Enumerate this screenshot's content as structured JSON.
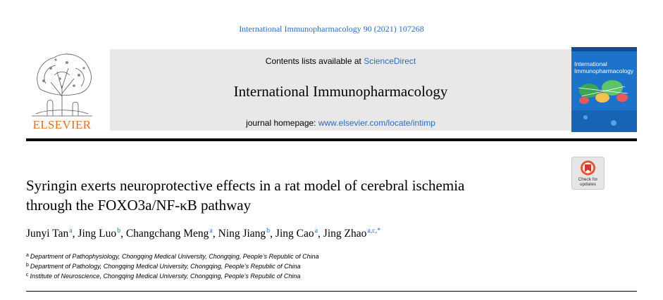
{
  "citation": "International Immunopharmacology 90 (2021) 107268",
  "header": {
    "publisher_logo": "ELSEVIER",
    "contents_prefix": "Contents lists available at ",
    "contents_link": "ScienceDirect",
    "journal_title": "International Immunopharmacology",
    "homepage_prefix": "journal homepage: ",
    "homepage_link": "www.elsevier.com/locate/intimp"
  },
  "cover": {
    "line1": "International",
    "line2": "Immunopharmacology",
    "accent_color": "#1d73c9"
  },
  "check_updates": {
    "line1": "Check for",
    "line2": "updates"
  },
  "article": {
    "title_line1": "Syringin exerts neuroprotective effects in a rat model of cerebral ischemia",
    "title_line2": "through the FOXO3a/NF-κB pathway"
  },
  "authors": [
    {
      "name": "Junyi Tan",
      "sup": "a",
      "sep": ", "
    },
    {
      "name": "Jing Luo",
      "sup": "b",
      "sep": ", "
    },
    {
      "name": "Changchang Meng",
      "sup": "a",
      "sep": ", "
    },
    {
      "name": "Ning Jiang",
      "sup": "b",
      "sep": ", "
    },
    {
      "name": "Jing Cao",
      "sup": "a",
      "sep": ", "
    },
    {
      "name": "Jing Zhao",
      "sup": "a,c,*",
      "sep": ""
    }
  ],
  "affiliations": [
    {
      "mark": "a",
      "text": "Department of Pathophysiology, Chongqing Medical University, Chongqing, People’s Republic of China"
    },
    {
      "mark": "b",
      "text": "Department of Pathology, Chongqing Medical University, Chongqing, People’s Republic of China"
    },
    {
      "mark": "c",
      "text": "Institute of Neuroscience, Chongqing Medical University, Chongqing, People’s Republic of China"
    }
  ],
  "colors": {
    "link": "#2a6ebb",
    "elsevier_orange": "#e46f1d",
    "banner_grey": "#e8e8e8"
  }
}
